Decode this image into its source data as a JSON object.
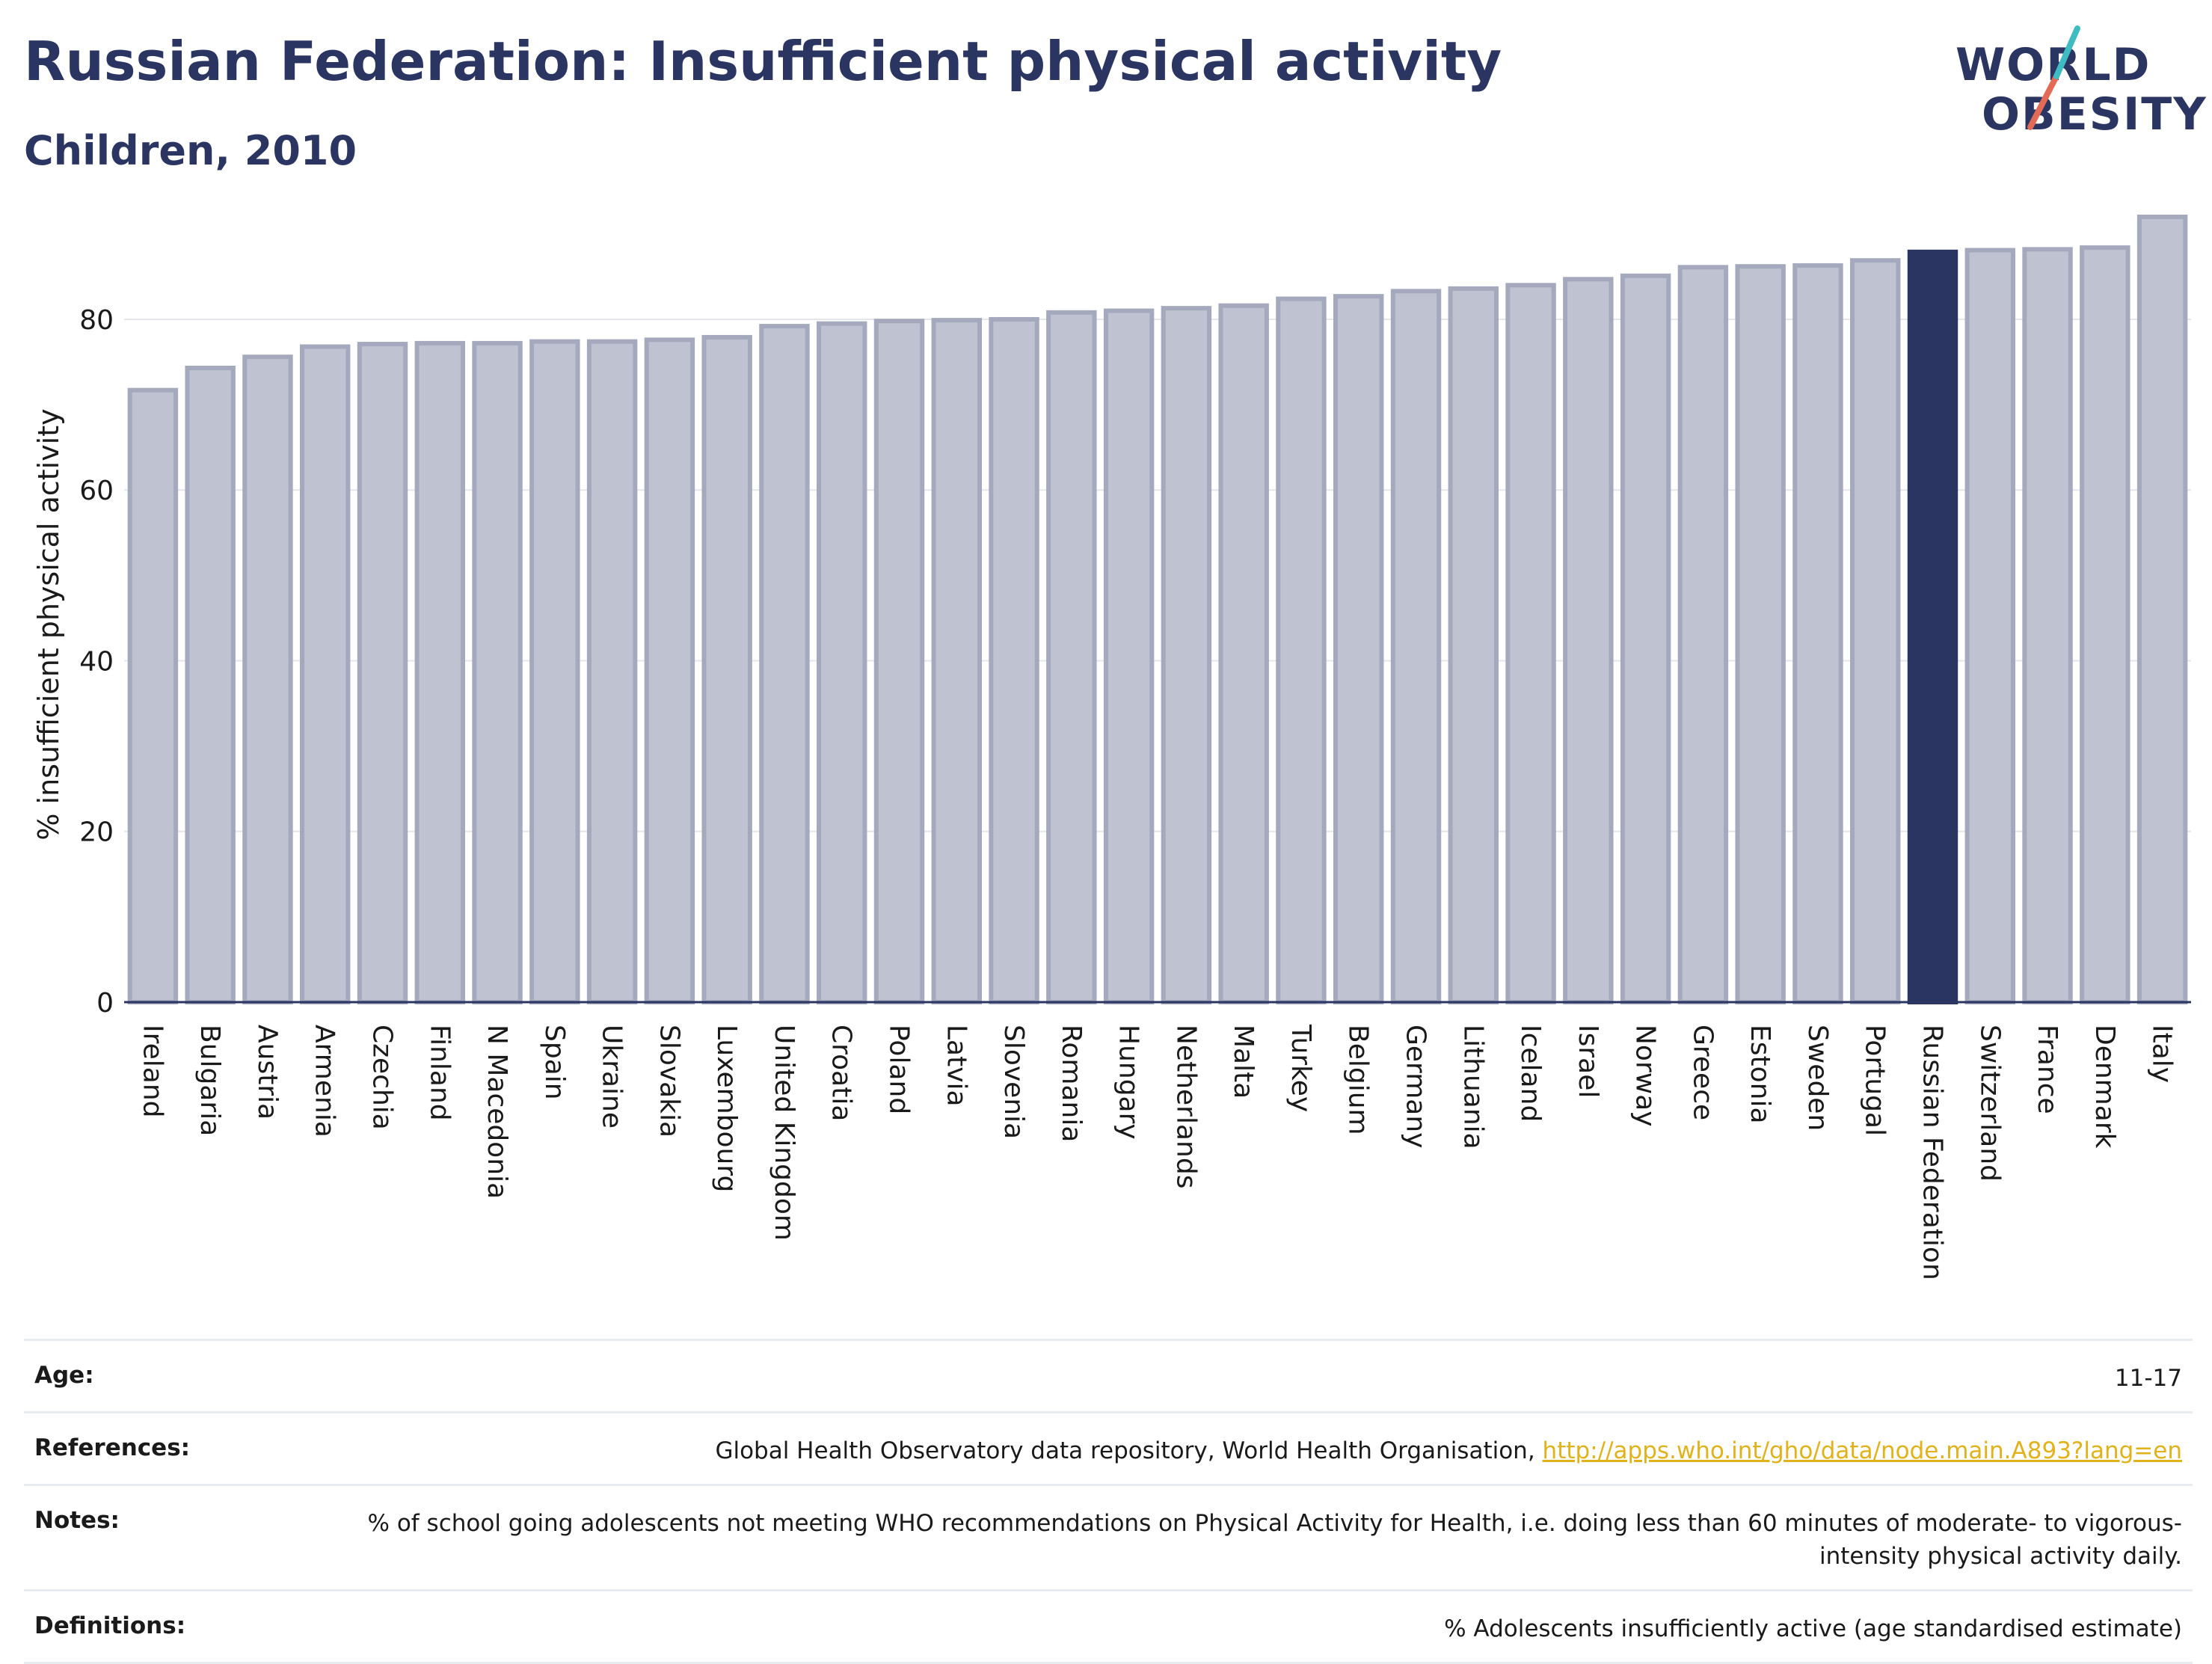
{
  "title": "Russian Federation: Insufficient physical activity",
  "subtitle": "Children, 2010",
  "logo": {
    "line1": "WORLD",
    "line2": "OBESITY"
  },
  "colors": {
    "bar": "#bfc3d1",
    "bar_stroke": "#a4a9be",
    "highlight": "#2b3561",
    "text": "#2b3561",
    "link": "#e0b21c"
  },
  "chart_data": {
    "type": "bar",
    "ylabel": "% insufficient physical activity",
    "ylim": [
      0,
      92
    ],
    "yticks": [
      0,
      20,
      40,
      60,
      80
    ],
    "grid": true,
    "highlight": "Russian Federation",
    "categories": [
      "Ireland",
      "Bulgaria",
      "Austria",
      "Armenia",
      "Czechia",
      "Finland",
      "N Macedonia",
      "Spain",
      "Ukraine",
      "Slovakia",
      "Luxembourg",
      "United Kingdom",
      "Croatia",
      "Poland",
      "Latvia",
      "Slovenia",
      "Romania",
      "Hungary",
      "Netherlands",
      "Malta",
      "Turkey",
      "Belgium",
      "Germany",
      "Lithuania",
      "Iceland",
      "Israel",
      "Norway",
      "Greece",
      "Estonia",
      "Sweden",
      "Portugal",
      "Russian Federation",
      "Switzerland",
      "France",
      "Denmark",
      "Italy"
    ],
    "values": [
      71.7,
      74.3,
      75.6,
      76.8,
      77.1,
      77.2,
      77.2,
      77.4,
      77.4,
      77.6,
      77.9,
      79.2,
      79.5,
      79.8,
      79.9,
      80.0,
      80.8,
      81.0,
      81.3,
      81.6,
      82.4,
      82.7,
      83.3,
      83.6,
      84.0,
      84.7,
      85.1,
      86.1,
      86.2,
      86.3,
      86.9,
      87.9,
      88.1,
      88.2,
      88.4,
      92.0
    ]
  },
  "info": [
    {
      "label": "Age:",
      "value": "11-17"
    },
    {
      "label": "References:",
      "value": "Global Health Observatory data repository, World Health Organisation, ",
      "link": "http://apps.who.int/gho/data/node.main.A893?lang=en"
    },
    {
      "label": "Notes:",
      "value": "% of school going adolescents not meeting WHO recommendations on Physical Activity for Health, i.e. doing less than 60 minutes of moderate- to vigorous-intensity physical activity daily."
    },
    {
      "label": "Definitions:",
      "value": "% Adolescents insufficiently active (age standardised estimate)"
    }
  ]
}
